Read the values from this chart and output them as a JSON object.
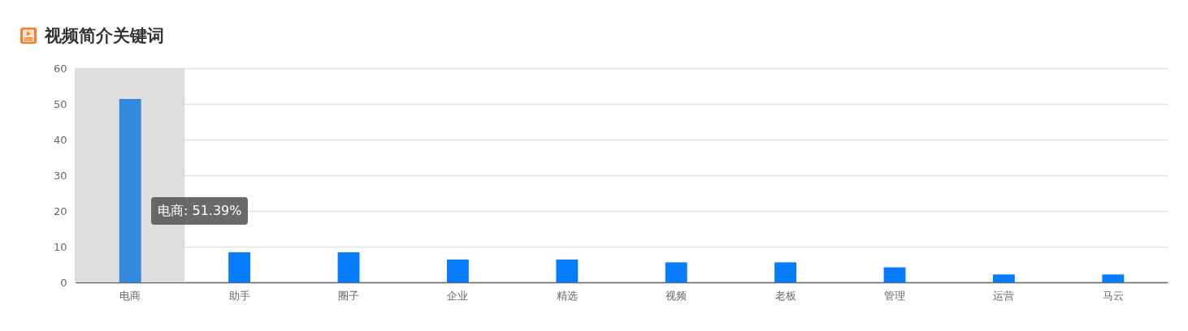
{
  "chart_data": {
    "type": "bar",
    "title": "视频简介关键词",
    "categories": [
      "电商",
      "助手",
      "圈子",
      "企业",
      "精选",
      "视频",
      "老板",
      "管理",
      "运营",
      "马云"
    ],
    "values": [
      51.39,
      8.4,
      8.4,
      6.4,
      6.4,
      5.6,
      5.6,
      4.2,
      2.2,
      2.2
    ],
    "colors": [
      "#3389de",
      "#087cff",
      "#087cff",
      "#087cff",
      "#087cff",
      "#087cff",
      "#087cff",
      "#087cff",
      "#087cff",
      "#087cff"
    ],
    "ylim": [
      0,
      60
    ],
    "yticks": [
      0,
      10,
      20,
      30,
      40,
      50,
      60
    ],
    "grid": "y",
    "bands": [
      {
        "axis": "x",
        "from": "电商",
        "to": "电商",
        "color": "#dedede"
      }
    ],
    "annotations": [
      "电商: 51.39%"
    ]
  }
}
